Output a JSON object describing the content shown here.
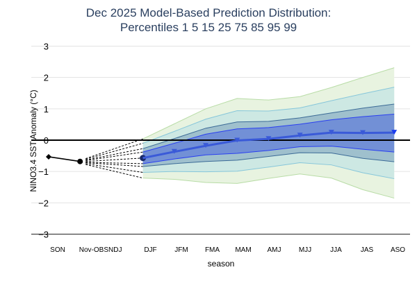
{
  "chart_data": {
    "type": "area",
    "title": "Dec 2025 Model-Based Prediction Distribution:",
    "subtitle": "Percentiles 1 5 15 25 75 85 95 99",
    "xlabel": "season",
    "ylabel": "NINO3.4 SST Anomaly (°C)",
    "ylim": [
      -3,
      3
    ],
    "yticks": [
      "3",
      "2",
      "1",
      "0",
      "−1",
      "−2",
      "−3"
    ],
    "ytick_values": [
      3,
      2,
      1,
      0,
      -1,
      -2,
      -3
    ],
    "categories": [
      "SON",
      "Nov-OBS",
      "NDJ",
      "DJF",
      "JFM",
      "FMA",
      "MAM",
      "AMJ",
      "MJJ",
      "JJA",
      "JAS",
      "ASO"
    ],
    "grid": true,
    "observed": {
      "categories": [
        "SON",
        "Nov-OBS"
      ],
      "values": [
        -0.53,
        -0.68
      ],
      "color": "#000000"
    },
    "forecast_categories": [
      "DJF",
      "JFM",
      "FMA",
      "MAM",
      "AMJ",
      "MJJ",
      "JJA",
      "JAS",
      "ASO"
    ],
    "percentiles": {
      "p1": [
        -1.21,
        -1.25,
        -1.35,
        -1.38,
        -1.22,
        -1.08,
        -1.21,
        -1.58,
        -1.85
      ],
      "p5": [
        -1.03,
        -1.0,
        -1.01,
        -0.99,
        -0.86,
        -0.72,
        -0.79,
        -1.04,
        -1.23
      ],
      "p15": [
        -0.84,
        -0.75,
        -0.68,
        -0.64,
        -0.52,
        -0.4,
        -0.41,
        -0.58,
        -0.69
      ],
      "p25": [
        -0.75,
        -0.6,
        -0.47,
        -0.42,
        -0.33,
        -0.21,
        -0.19,
        -0.29,
        -0.38
      ],
      "median": [
        -0.57,
        -0.37,
        -0.18,
        -0.01,
        0.04,
        0.15,
        0.24,
        0.23,
        0.24
      ],
      "p75": [
        -0.38,
        -0.1,
        0.19,
        0.36,
        0.4,
        0.51,
        0.65,
        0.75,
        0.83
      ],
      "p85": [
        -0.27,
        0.05,
        0.38,
        0.58,
        0.6,
        0.71,
        0.87,
        1.02,
        1.15
      ],
      "p95": [
        -0.1,
        0.28,
        0.67,
        0.94,
        0.93,
        1.03,
        1.26,
        1.48,
        1.69
      ],
      "p99": [
        0.04,
        0.52,
        1.0,
        1.33,
        1.28,
        1.39,
        1.68,
        2.0,
        2.31
      ]
    },
    "colors": {
      "band_1_99": "#e8f3e0",
      "line_1_99": "#b8dca6",
      "band_5_95": "#cde8e3",
      "line_5_95": "#86c6da",
      "band_15_85": "#9fc0cd",
      "line_15_85": "#3b6a96",
      "band_25_75": "#7290d6",
      "line_25_75": "#2a3ff0",
      "median": "#3a5ad8",
      "zero_line": "#000000"
    }
  }
}
